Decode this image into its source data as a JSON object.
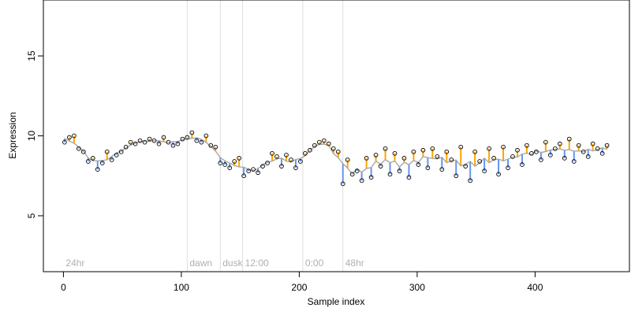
{
  "chart_data": {
    "type": "scatter",
    "title": "",
    "xlabel": "Sample index",
    "ylabel": "Expression",
    "xlim": [
      -17,
      480
    ],
    "ylim": [
      1.5,
      18.5
    ],
    "x_ticks": [
      0,
      100,
      200,
      300,
      400
    ],
    "y_ticks": [
      5,
      10,
      15
    ],
    "grid": false,
    "legend": "none",
    "colors": {
      "point_edge": "#000000",
      "segment_high": "#ffa500",
      "segment_low": "#6495ed",
      "trend": "#a9a9a9",
      "phase_line": "#dddddd",
      "phase_label": "#b0b0b0"
    },
    "phase_markers": [
      {
        "label": "24hr",
        "x": 0
      },
      {
        "label": "dawn",
        "x": 105
      },
      {
        "label": "dusk",
        "x": 133
      },
      {
        "label": "12:00",
        "x": 152
      },
      {
        "label": "0:00",
        "x": 203
      },
      {
        "label": "48hr",
        "x": 237
      }
    ],
    "series": [
      {
        "x": [
          1,
          5,
          9,
          13,
          17,
          21,
          25,
          29,
          33,
          37,
          41,
          45,
          49,
          53,
          57,
          61,
          65,
          69,
          73,
          77,
          81,
          85,
          89,
          93,
          97,
          101,
          105,
          109,
          113,
          117,
          121,
          125,
          129,
          133,
          137,
          141,
          145,
          149,
          153,
          157,
          161,
          165,
          169,
          173,
          177,
          181,
          185,
          189,
          193,
          197,
          201,
          205,
          209,
          213,
          217,
          221,
          225,
          229,
          233,
          237,
          241,
          245,
          249,
          253,
          257,
          261,
          265,
          269,
          273,
          277,
          281,
          285,
          289,
          293,
          297,
          301,
          305,
          309,
          313,
          317,
          321,
          325,
          329,
          333,
          337,
          341,
          345,
          349,
          353,
          357,
          361,
          365,
          369,
          373,
          377,
          381,
          385,
          389,
          393,
          397,
          401,
          405,
          409,
          413,
          417,
          421,
          425,
          429,
          433,
          437,
          441,
          445,
          449,
          453,
          457,
          461
        ],
        "y": [
          9.6,
          9.9,
          10.0,
          9.2,
          9.0,
          8.4,
          8.6,
          7.9,
          8.3,
          9.0,
          8.5,
          8.8,
          9.0,
          9.3,
          9.6,
          9.5,
          9.7,
          9.6,
          9.8,
          9.7,
          9.5,
          9.9,
          9.6,
          9.4,
          9.5,
          9.8,
          9.9,
          10.2,
          9.7,
          9.6,
          10.0,
          9.4,
          9.3,
          8.3,
          8.2,
          8.0,
          8.4,
          8.6,
          7.5,
          7.8,
          7.9,
          7.7,
          8.1,
          8.3,
          8.9,
          8.7,
          8.1,
          8.8,
          8.5,
          8.0,
          8.4,
          8.9,
          9.1,
          9.4,
          9.6,
          9.7,
          9.5,
          9.2,
          9.0,
          7.0,
          8.5,
          7.6,
          7.8,
          7.2,
          8.6,
          7.4,
          8.8,
          8.1,
          9.2,
          7.6,
          8.9,
          7.8,
          8.6,
          7.4,
          9.0,
          8.2,
          9.1,
          8.0,
          9.2,
          8.7,
          7.9,
          9.0,
          8.5,
          7.5,
          9.3,
          8.1,
          7.2,
          9.0,
          8.4,
          7.8,
          9.2,
          8.6,
          7.6,
          9.3,
          8.0,
          8.7,
          9.1,
          8.2,
          9.4,
          8.9,
          9.0,
          8.5,
          9.6,
          8.8,
          9.2,
          9.5,
          8.6,
          9.8,
          8.4,
          9.4,
          9.0,
          8.7,
          9.5,
          9.2,
          8.9,
          9.4
        ]
      }
    ]
  }
}
